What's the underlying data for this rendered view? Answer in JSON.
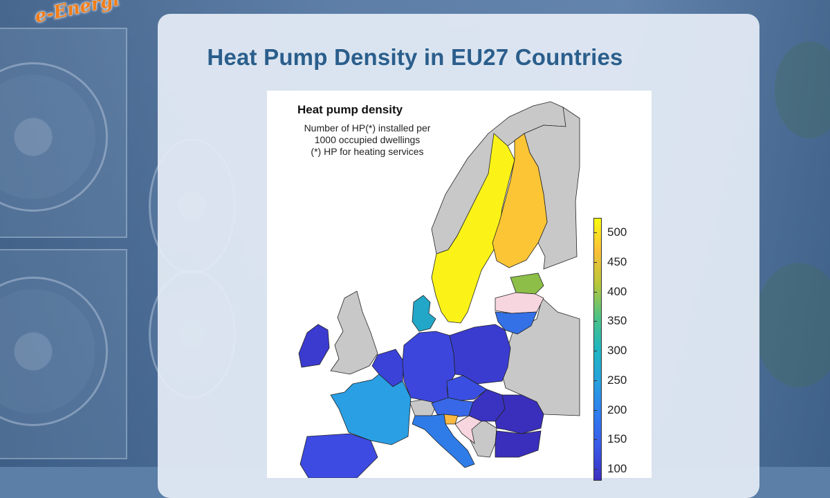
{
  "brand": {
    "logo_text": "e-Energi"
  },
  "headline": "Heat Pump Density in EU27 Countries",
  "map": {
    "title": "Heat pump density",
    "subtitle_lines": [
      "Number of HP(*) installed per",
      "1000 occupied dwellings",
      "(*) HP for heating services"
    ],
    "colorbar": {
      "ticks": [
        "500",
        "450",
        "400",
        "350",
        "300",
        "250",
        "200",
        "150",
        "100"
      ],
      "range": [
        80,
        525
      ],
      "colors": [
        "#f9fb0e",
        "#fbbf39",
        "#b8c73a",
        "#4fc383",
        "#1fb6c1",
        "#27a0de",
        "#2f7cf0",
        "#3a58e8",
        "#3b2fbf"
      ]
    },
    "countries": [
      {
        "name": "Sweden",
        "value": 520,
        "color": "#fbf318"
      },
      {
        "name": "Finland",
        "value": 450,
        "color": "#fbc536"
      },
      {
        "name": "Estonia",
        "value": 380,
        "color": "#8cbe48"
      },
      {
        "name": "Denmark",
        "value": 240,
        "color": "#22a7c8"
      },
      {
        "name": "France",
        "value": 200,
        "color": "#2a9fe4"
      },
      {
        "name": "Lithuania",
        "value": 150,
        "color": "#3470e6"
      },
      {
        "name": "Italy",
        "value": 170,
        "color": "#2f7ce9"
      },
      {
        "name": "Austria",
        "value": 150,
        "color": "#3868e8"
      },
      {
        "name": "Slovenia",
        "value": 450,
        "color": "#f9b840"
      },
      {
        "name": "Ireland",
        "value": 100,
        "color": "#3c3bd0"
      },
      {
        "name": "Germany",
        "value": 110,
        "color": "#3c46dc"
      },
      {
        "name": "Poland",
        "value": 100,
        "color": "#3a3ccf"
      },
      {
        "name": "Czechia",
        "value": 120,
        "color": "#3a4fe2"
      },
      {
        "name": "Hungary",
        "value": 90,
        "color": "#3a33c2"
      },
      {
        "name": "Romania",
        "value": 90,
        "color": "#3a2fbc"
      },
      {
        "name": "Bulgaria",
        "value": 90,
        "color": "#3a2fbc"
      },
      {
        "name": "Spain",
        "value": 110,
        "color": "#3d4be2"
      },
      {
        "name": "Benelux",
        "value": 110,
        "color": "#3a42d8"
      },
      {
        "name": "Latvia",
        "value": null,
        "color": "#f7d6df"
      },
      {
        "name": "Croatia",
        "value": null,
        "color": "#f7d6df"
      },
      {
        "name": "Non-EU",
        "value": null,
        "color": "#c8c8c8"
      }
    ]
  }
}
